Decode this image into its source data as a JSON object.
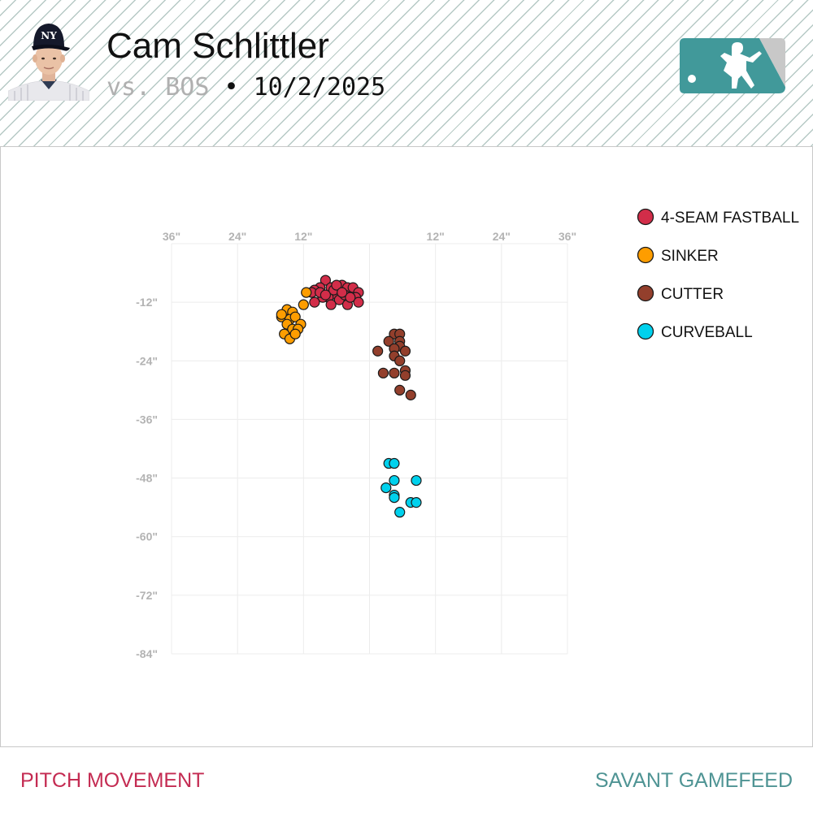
{
  "header": {
    "player_name": "Cam Schlittler",
    "opponent": "vs. BOS",
    "separator": "•",
    "date": "10/2/2025"
  },
  "footer": {
    "left_label": "PITCH MOVEMENT",
    "right_label": "SAVANT GAMEFEED"
  },
  "chart_data": {
    "type": "scatter",
    "title": "",
    "xlabel": "",
    "ylabel": "",
    "x_ticks": [
      "36\"",
      "24\"",
      "12\"",
      "",
      "12\"",
      "24\"",
      "36\""
    ],
    "y_ticks": [
      "-12\"",
      "-24\"",
      "-36\"",
      "-48\"",
      "-60\"",
      "-72\"",
      "-84\""
    ],
    "xlim": [
      -36,
      36
    ],
    "ylim": [
      -84,
      0
    ],
    "grid": true,
    "legend_position": "right",
    "series": [
      {
        "name": "4-SEAM FASTBALL",
        "color": "#d22d49",
        "points": [
          [
            -8,
            -7.5
          ],
          [
            -9,
            -9
          ],
          [
            -10,
            -9.5
          ],
          [
            -10.5,
            -10
          ],
          [
            -7,
            -9
          ],
          [
            -5,
            -8.5
          ],
          [
            -4,
            -9
          ],
          [
            -3,
            -9
          ],
          [
            -2,
            -10
          ],
          [
            -2.5,
            -11
          ],
          [
            -6,
            -10.5
          ],
          [
            -7.5,
            -11
          ],
          [
            -6.5,
            -9.5
          ],
          [
            -5.5,
            -11.5
          ],
          [
            -4.5,
            -10.5
          ],
          [
            -8.5,
            -11
          ],
          [
            -7,
            -12.5
          ],
          [
            -10,
            -12
          ],
          [
            -4,
            -12.5
          ],
          [
            -2,
            -12
          ],
          [
            -3.5,
            -11
          ],
          [
            -9,
            -10
          ],
          [
            -6,
            -8.5
          ],
          [
            -8,
            -10.5
          ],
          [
            -5,
            -10
          ]
        ]
      },
      {
        "name": "SINKER",
        "color": "#fe9d00",
        "points": [
          [
            -11.5,
            -10
          ],
          [
            -12,
            -12.5
          ],
          [
            -15,
            -13.5
          ],
          [
            -16,
            -15
          ],
          [
            -14,
            -14
          ],
          [
            -14.5,
            -15.5
          ],
          [
            -13.5,
            -15
          ],
          [
            -15,
            -16.5
          ],
          [
            -14,
            -17.5
          ],
          [
            -12.5,
            -16.5
          ],
          [
            -13,
            -17.5
          ],
          [
            -15.5,
            -18.5
          ],
          [
            -14.5,
            -19.5
          ],
          [
            -13.5,
            -18.5
          ],
          [
            -16,
            -14.5
          ]
        ]
      },
      {
        "name": "CUTTER",
        "color": "#933f2c",
        "points": [
          [
            4.5,
            -18.5
          ],
          [
            5.5,
            -18.5
          ],
          [
            3.5,
            -20
          ],
          [
            5.5,
            -20
          ],
          [
            5.5,
            -21
          ],
          [
            4.5,
            -21.5
          ],
          [
            1.5,
            -22
          ],
          [
            6.5,
            -22
          ],
          [
            4.5,
            -23
          ],
          [
            5.5,
            -24
          ],
          [
            6.5,
            -26
          ],
          [
            2.5,
            -26.5
          ],
          [
            4.5,
            -26.5
          ],
          [
            6.5,
            -27
          ],
          [
            5.5,
            -30
          ],
          [
            7.5,
            -31
          ]
        ]
      },
      {
        "name": "CURVEBALL",
        "color": "#00d1ed",
        "points": [
          [
            3.5,
            -45
          ],
          [
            4.5,
            -45
          ],
          [
            8.5,
            -48.5
          ],
          [
            4.5,
            -48.5
          ],
          [
            3,
            -50
          ],
          [
            4.5,
            -51.5
          ],
          [
            4.5,
            -52
          ],
          [
            7.5,
            -53
          ],
          [
            8.5,
            -53
          ],
          [
            5.5,
            -55
          ]
        ]
      }
    ]
  },
  "colors": {
    "brand_teal": "#41999a",
    "footer_left": "#c42b52",
    "footer_right": "#4f9494"
  },
  "icons": {
    "headshot": "player-headshot",
    "logo": "mlb-logo"
  }
}
